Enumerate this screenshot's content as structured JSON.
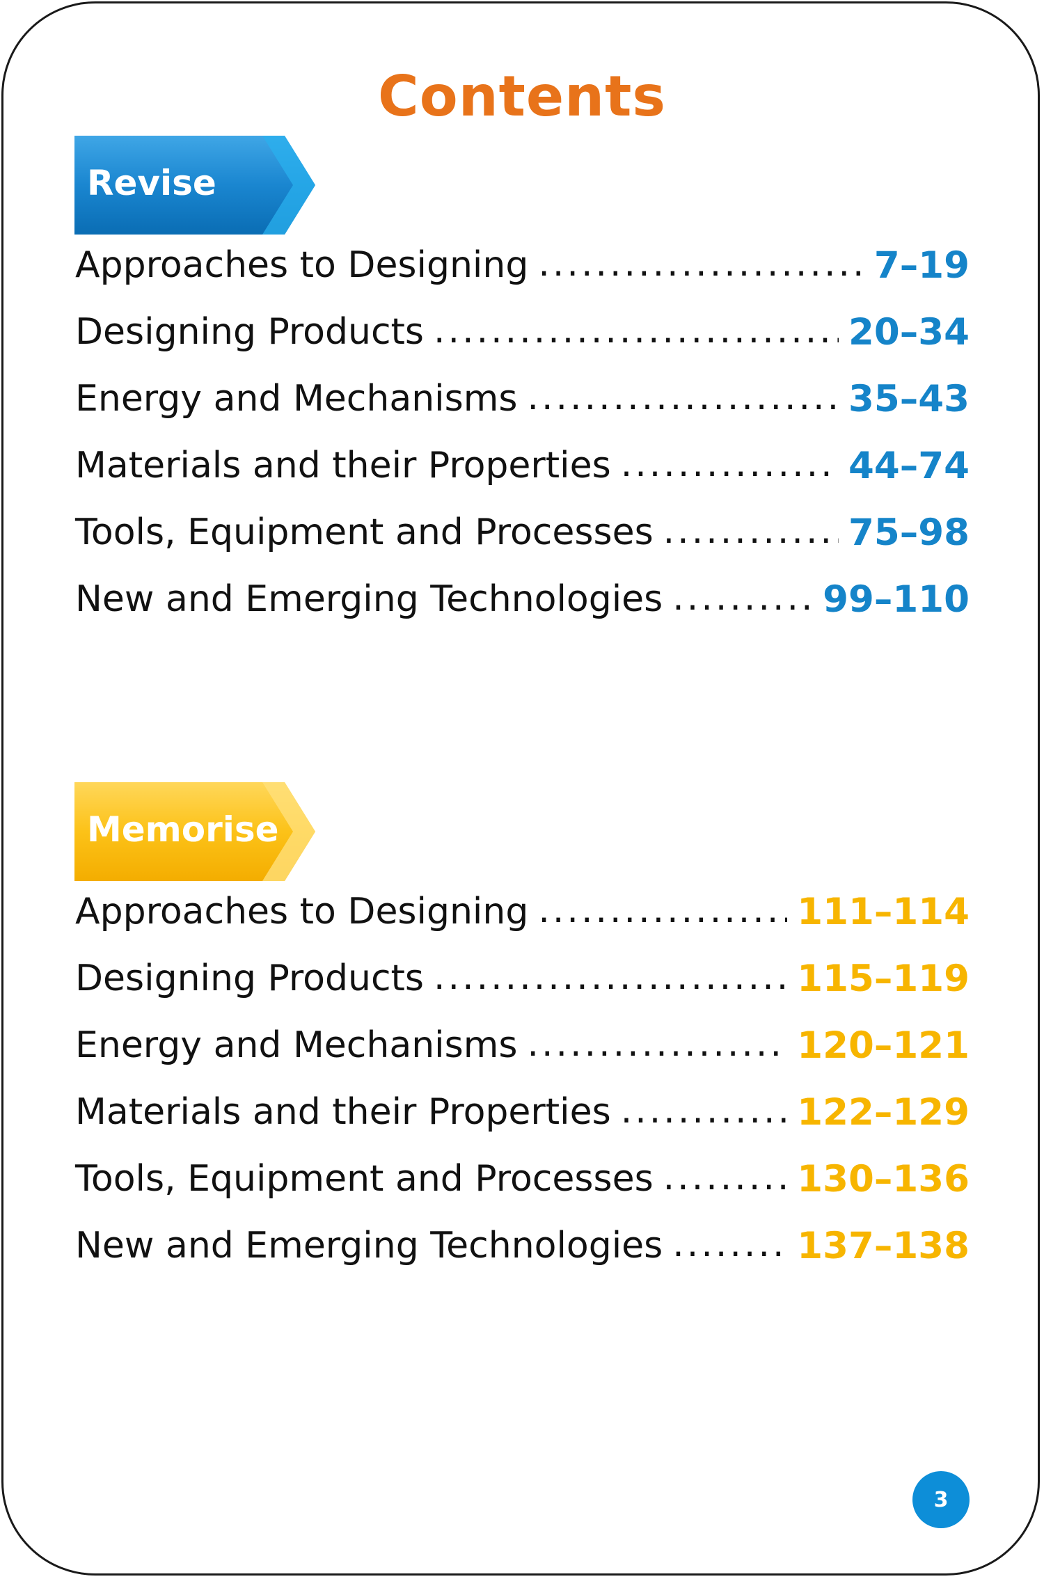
{
  "title": "Contents",
  "colors": {
    "title": "#e8731a",
    "revise_accent": "#1584c9",
    "memorise_accent": "#f7b500",
    "page_badge": "#0d8ed8"
  },
  "revise": {
    "label": "Revise",
    "items": [
      {
        "label": "Approaches to Designing",
        "pages": "7–19"
      },
      {
        "label": "Designing Products",
        "pages": "20–34"
      },
      {
        "label": "Energy and Mechanisms",
        "pages": "35–43"
      },
      {
        "label": "Materials and their Properties",
        "pages": "44–74"
      },
      {
        "label": "Tools, Equipment and Processes",
        "pages": "75–98"
      },
      {
        "label": "New and Emerging Technologies",
        "pages": "99–110"
      }
    ]
  },
  "memorise": {
    "label": "Memorise",
    "items": [
      {
        "label": "Approaches to Designing",
        "pages": "111–114"
      },
      {
        "label": "Designing Products",
        "pages": "115–119"
      },
      {
        "label": "Energy and Mechanisms",
        "pages": "120–121"
      },
      {
        "label": "Materials and their Properties",
        "pages": "122–129"
      },
      {
        "label": "Tools, Equipment and Processes",
        "pages": "130–136"
      },
      {
        "label": "New and Emerging Technologies",
        "pages": "137–138"
      }
    ]
  },
  "page_number": "3"
}
